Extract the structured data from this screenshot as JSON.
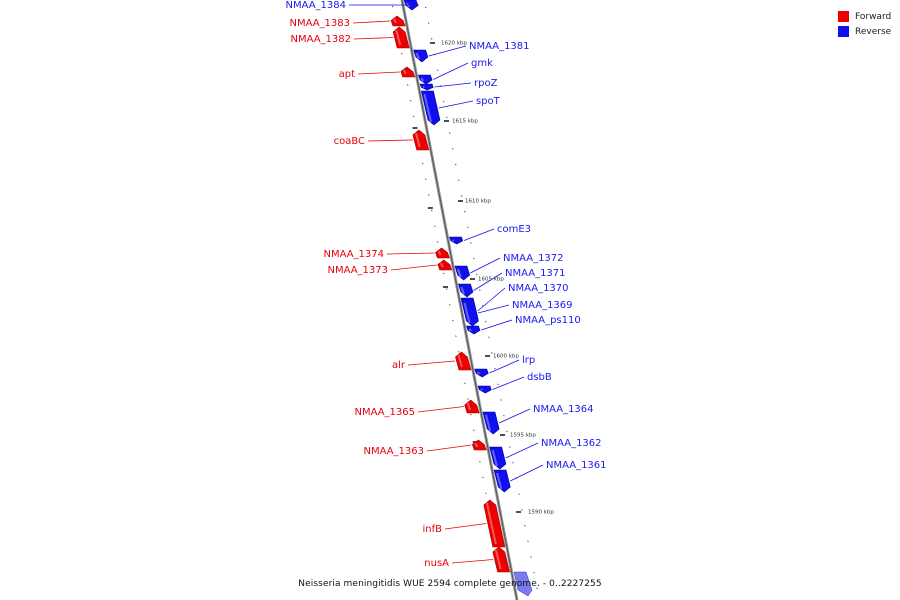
{
  "legend": [
    {
      "label": "Forward",
      "color": "#ee0000"
    },
    {
      "label": "Reverse",
      "color": "#1010ee"
    }
  ],
  "caption": "Neisseria meningitidis WUE 2594 complete genome. - 0..2227255",
  "ticks": [
    {
      "label": "1620 kbp"
    },
    {
      "label": "1615 kbp"
    },
    {
      "label": "1610 kbp"
    },
    {
      "label": "1605 kbp"
    },
    {
      "label": "1600 kbp"
    },
    {
      "label": "1595 kbp"
    },
    {
      "label": "1590 kbp"
    }
  ],
  "genes": [
    {
      "name": "NMAA_1384",
      "strand": "reverse"
    },
    {
      "name": "NMAA_1383",
      "strand": "forward"
    },
    {
      "name": "NMAA_1382",
      "strand": "forward"
    },
    {
      "name": "NMAA_1381",
      "strand": "reverse"
    },
    {
      "name": "gmk",
      "strand": "reverse"
    },
    {
      "name": "apt",
      "strand": "forward"
    },
    {
      "name": "rpoZ",
      "strand": "reverse"
    },
    {
      "name": "spoT",
      "strand": "reverse"
    },
    {
      "name": "coaBC",
      "strand": "forward"
    },
    {
      "name": "comE3",
      "strand": "reverse"
    },
    {
      "name": "NMAA_1374",
      "strand": "forward"
    },
    {
      "name": "NMAA_1373",
      "strand": "forward"
    },
    {
      "name": "NMAA_1372",
      "strand": "reverse"
    },
    {
      "name": "NMAA_1371",
      "strand": "reverse"
    },
    {
      "name": "NMAA_1370",
      "strand": "reverse"
    },
    {
      "name": "NMAA_1369",
      "strand": "reverse"
    },
    {
      "name": "NMAA_ps110",
      "strand": "reverse"
    },
    {
      "name": "alr",
      "strand": "forward"
    },
    {
      "name": "lrp",
      "strand": "reverse"
    },
    {
      "name": "dsbB",
      "strand": "reverse"
    },
    {
      "name": "NMAA_1365",
      "strand": "forward"
    },
    {
      "name": "NMAA_1364",
      "strand": "reverse"
    },
    {
      "name": "NMAA_1363",
      "strand": "forward"
    },
    {
      "name": "NMAA_1362",
      "strand": "reverse"
    },
    {
      "name": "NMAA_1361",
      "strand": "reverse"
    },
    {
      "name": "infB",
      "strand": "forward"
    },
    {
      "name": "nusA",
      "strand": "forward"
    }
  ]
}
